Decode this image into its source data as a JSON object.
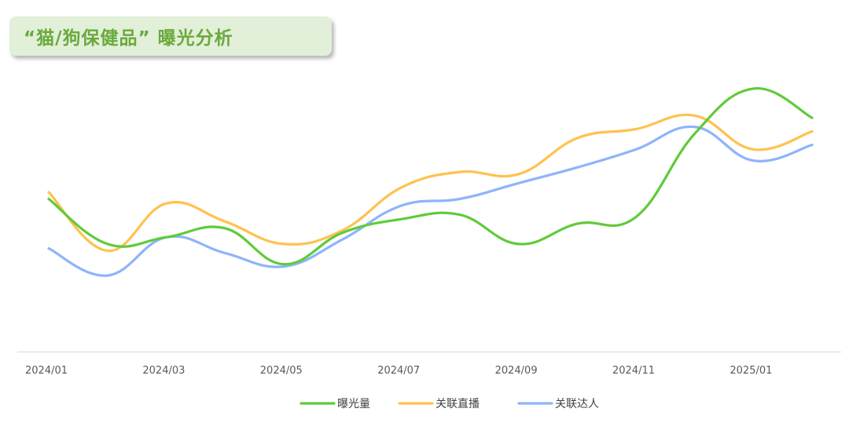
{
  "title": "“猫/狗保健品” 曝光分析",
  "chart_data": {
    "type": "line",
    "smooth": true,
    "x": [
      "2024/01",
      "2024/02",
      "2024/03",
      "2024/04",
      "2024/05",
      "2024/06",
      "2024/07",
      "2024/08",
      "2024/09",
      "2024/10",
      "2024/11",
      "2024/12",
      "2025/01",
      "2025/02"
    ],
    "x_tick_labels": [
      "2024/01",
      "2024/03",
      "2024/05",
      "2024/07",
      "2024/09",
      "2024/11",
      "2025/01"
    ],
    "y_axis_visible": false,
    "ylim": [
      0,
      100
    ],
    "grid": false,
    "legend_position": "bottom",
    "series": [
      {
        "name": "曝光量",
        "color": "#5fcb3a",
        "values": [
          50,
          30,
          33,
          37,
          21,
          35,
          41,
          43,
          30,
          39,
          42,
          79,
          99,
          86
        ]
      },
      {
        "name": "关联直播",
        "color": "#ffc24f",
        "values": [
          53,
          27,
          48,
          40,
          30,
          36,
          55,
          62,
          61,
          77,
          81,
          87,
          72,
          80
        ]
      },
      {
        "name": "关联达人",
        "color": "#8eb4fb",
        "values": [
          28,
          16,
          33,
          26,
          20,
          32,
          47,
          50,
          57,
          64,
          72,
          82,
          67,
          74
        ]
      }
    ]
  }
}
